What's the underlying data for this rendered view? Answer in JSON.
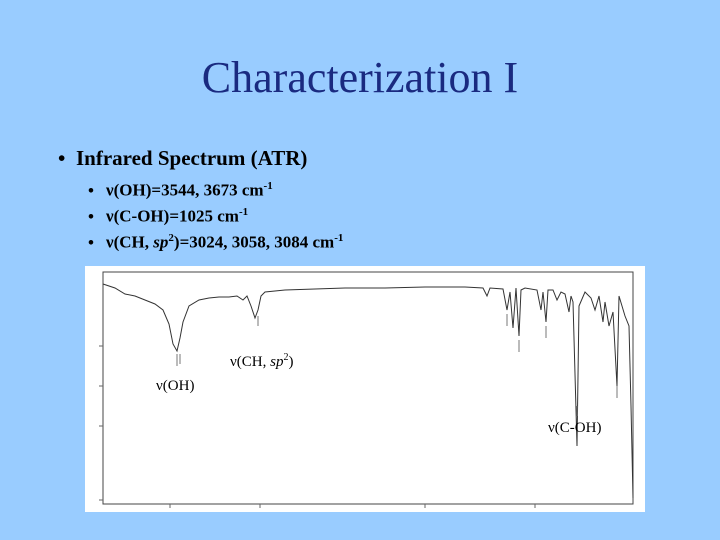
{
  "title": "Characterization I",
  "bullet": "Infrared Spectrum (ATR)",
  "subs": [
    {
      "nu": "ν",
      "text": "(OH)=3544, 3673 cm",
      "sup": "-1"
    },
    {
      "nu": "ν",
      "text": "(C-OH)=1025 cm",
      "sup": "-1"
    },
    {
      "nu": "ν",
      "text_a": "(CH, ",
      "it": "sp",
      "sup_a": "2",
      "text_b": ")=3024, 3058, 3084 cm",
      "sup_b": "-1"
    }
  ],
  "labels": {
    "ch": {
      "nu": "ν",
      "a": "(CH, ",
      "it": "sp",
      "sup": "2",
      "b": ")"
    },
    "oh": {
      "nu": "ν",
      "a": "(OH)"
    },
    "coh": {
      "nu": "ν",
      "a": "(C-OH)"
    }
  }
}
